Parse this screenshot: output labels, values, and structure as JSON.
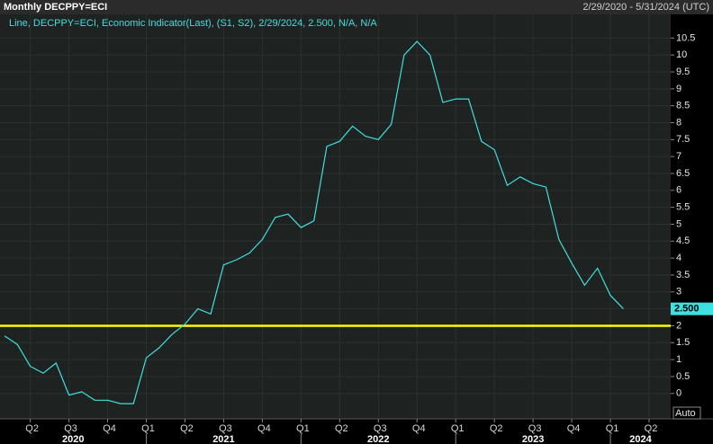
{
  "chart_data": {
    "type": "line",
    "title": "Monthly DECPPY=ECI",
    "subtitle": "2/29/2020 - 5/31/2024 (UTC)",
    "legend_text": "Line, DECPPY=ECI, Economic Indicator(Last), (S1, S2), 2/29/2024, 2.500, N/A, N/A",
    "categories": [
      null,
      null,
      "Q2",
      null,
      null,
      "Q3",
      null,
      null,
      "Q4",
      null,
      null,
      "Q1",
      null,
      null,
      "Q2",
      null,
      null,
      "Q3",
      null,
      null,
      "Q4",
      null,
      null,
      "Q1",
      null,
      null,
      "Q2",
      null,
      null,
      "Q3",
      null,
      null,
      "Q4",
      null,
      null,
      "Q1",
      null,
      null,
      "Q2",
      null,
      null,
      "Q3",
      null,
      null,
      "Q4",
      null,
      null,
      "Q1",
      null,
      null,
      "Q2",
      null
    ],
    "x_groups": [
      "2020",
      "2021",
      "2022",
      "2023",
      "2024"
    ],
    "series": [
      {
        "name": "DECPPY=ECI",
        "color": "#3fe0e0",
        "values": [
          1.7,
          1.45,
          0.8,
          0.6,
          0.9,
          -0.05,
          0.05,
          -0.2,
          -0.2,
          -0.3,
          -0.3,
          1.05,
          1.35,
          1.75,
          2.05,
          2.5,
          2.35,
          3.8,
          3.95,
          4.15,
          4.55,
          5.2,
          5.3,
          4.9,
          5.1,
          7.3,
          7.45,
          7.9,
          7.6,
          7.5,
          7.95,
          10.0,
          10.4,
          10.0,
          8.6,
          8.7,
          8.7,
          7.45,
          7.2,
          6.15,
          6.4,
          6.2,
          6.1,
          4.55,
          3.85,
          3.2,
          3.7,
          2.9,
          2.5,
          null,
          null,
          null
        ]
      }
    ],
    "last_value_label": "2.500",
    "reference_line": {
      "value": 2,
      "color": "#ffff00"
    },
    "ylim": [
      -0.75,
      11.2
    ],
    "yticks": [
      0,
      0.5,
      1,
      1.5,
      2,
      2.5,
      3,
      3.5,
      4,
      4.5,
      5,
      5.5,
      6,
      6.5,
      7,
      7.5,
      8,
      8.5,
      9,
      9.5,
      10,
      10.5
    ],
    "grid": true,
    "auto_button": "Auto"
  }
}
